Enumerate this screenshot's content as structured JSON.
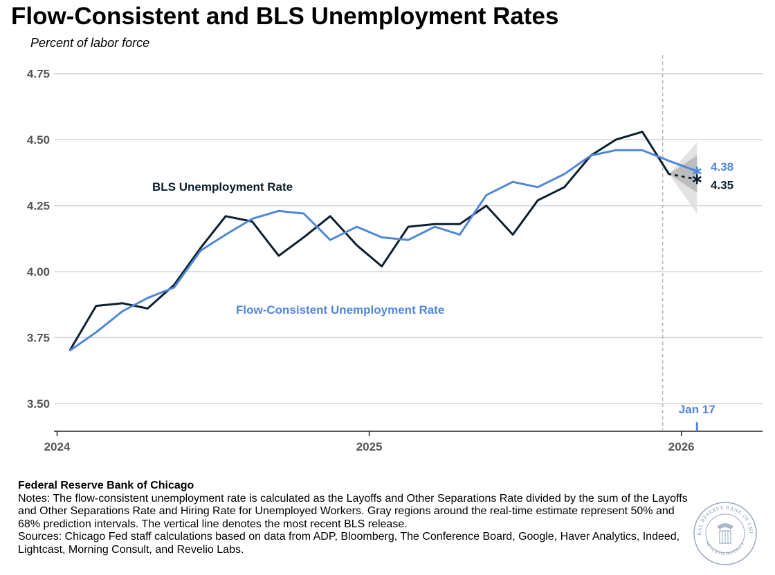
{
  "header": {
    "title": "Flow-Consistent and BLS Unemployment Rates",
    "subtitle": "Percent of labor force"
  },
  "chart_data": {
    "type": "line",
    "title": "Flow-Consistent and BLS Unemployment Rates",
    "ylabel": "Percent of labor force",
    "ylim": [
      3.4,
      4.82
    ],
    "xlim": [
      2023.99,
      2026.26
    ],
    "yticks": [
      "4.75",
      "4.50",
      "4.25",
      "4.00",
      "3.75",
      "3.50"
    ],
    "ytick_values": [
      4.75,
      4.5,
      4.25,
      4.0,
      3.75,
      3.5
    ],
    "xticks": [
      "2024",
      "2025",
      "2026"
    ],
    "xtick_values": [
      2024.0,
      2025.0,
      2026.0
    ],
    "series": [
      {
        "name": "BLS Unemployment Rate",
        "color": "#0b1f2e",
        "x": [
          2024.04,
          2024.125,
          2024.21,
          2024.29,
          2024.375,
          2024.46,
          2024.54,
          2024.625,
          2024.71,
          2024.79,
          2024.875,
          2024.96,
          2025.04,
          2025.125,
          2025.21,
          2025.29,
          2025.375,
          2025.46,
          2025.54,
          2025.625,
          2025.71,
          2025.79,
          2025.875,
          2025.96
        ],
        "values": [
          3.7,
          3.87,
          3.88,
          3.86,
          3.95,
          4.09,
          4.21,
          4.19,
          4.06,
          4.13,
          4.21,
          4.1,
          4.02,
          4.17,
          4.18,
          4.18,
          4.25,
          4.14,
          4.27,
          4.32,
          4.44,
          4.5,
          4.53,
          4.37
        ]
      },
      {
        "name": "Flow-Consistent Unemployment Rate",
        "color": "#4f86da",
        "x": [
          2024.04,
          2024.125,
          2024.21,
          2024.29,
          2024.375,
          2024.46,
          2024.54,
          2024.625,
          2024.71,
          2024.79,
          2024.875,
          2024.96,
          2025.04,
          2025.125,
          2025.21,
          2025.29,
          2025.375,
          2025.46,
          2025.54,
          2025.625,
          2025.71,
          2025.79,
          2025.875,
          2025.96,
          2026.05
        ],
        "values": [
          3.7,
          3.77,
          3.85,
          3.9,
          3.94,
          4.08,
          4.14,
          4.2,
          4.23,
          4.22,
          4.12,
          4.17,
          4.13,
          4.12,
          4.17,
          4.14,
          4.29,
          4.34,
          4.32,
          4.37,
          4.44,
          4.46,
          4.46,
          4.42,
          4.38
        ]
      }
    ],
    "bls_realtime": {
      "from": 4.37,
      "value": 4.35,
      "x": 2026.05
    },
    "intervals": {
      "from_x": 2025.96,
      "to_x": 2026.05,
      "center": 4.37,
      "band_50": [
        4.3,
        4.44
      ],
      "band_68": [
        4.22,
        4.49
      ]
    },
    "release_line_x": 2025.94,
    "marker_x": 2026.05,
    "marker_label": "Jan 17",
    "labels": {
      "bls_value": "4.35",
      "flow_value": "4.38",
      "bls_series": "BLS Unemployment Rate",
      "flow_series": "Flow-Consistent Unemployment Rate"
    },
    "grid": true,
    "legend": "inline"
  },
  "footer": {
    "org": "Federal Reserve Bank of Chicago",
    "notes": "Notes: The flow-consistent unemployment rate is calculated as the Layoffs and Other Separations Rate divided by the sum of the Layoffs and Other Separations Rate and Hiring Rate for Unemployed Workers. Gray regions around the real-time estimate represent 50% and 68% prediction intervals. The vertical line denotes the most recent BLS release.",
    "sources": "Sources: Chicago Fed staff calculations based on data from ADP, Bloomberg, The Conference Board, Google, Haver Analytics, Indeed, Lightcast, Morning Consult, and Revelio Labs."
  },
  "seal": {
    "top_text": "FEDERAL RESERVE BANK OF CHICAGO",
    "bottom_text": "SEVENTH DISTRICT"
  }
}
